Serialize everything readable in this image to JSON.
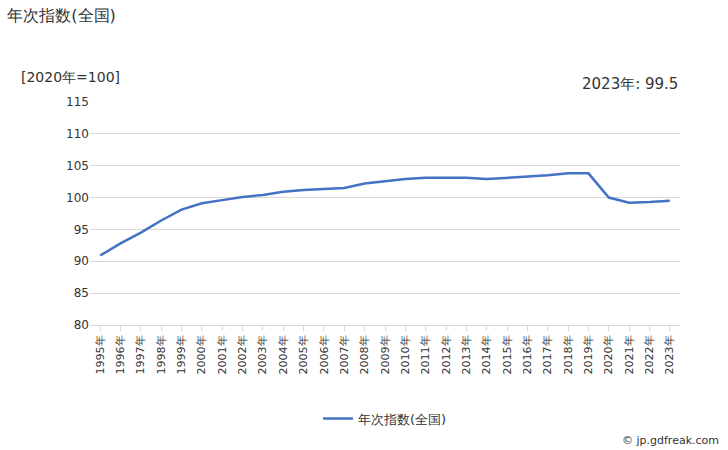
{
  "chart_data": {
    "type": "line",
    "title": "年次指数(全国)",
    "y_label": "[2020年=100]",
    "annotation": "2023年: 99.5",
    "source": "© jp.gdfreak.com",
    "categories": [
      "1995年",
      "1996年",
      "1997年",
      "1998年",
      "1999年",
      "2000年",
      "2001年",
      "2002年",
      "2003年",
      "2004年",
      "2005年",
      "2006年",
      "2007年",
      "2008年",
      "2009年",
      "2010年",
      "2011年",
      "2012年",
      "2013年",
      "2014年",
      "2015年",
      "2016年",
      "2017年",
      "2018年",
      "2019年",
      "2020年",
      "2021年",
      "2022年",
      "2023年"
    ],
    "series": [
      {
        "name": "年次指数(全国)",
        "color": "#4472c4",
        "values": [
          90.9,
          92.8,
          94.5,
          96.4,
          98.1,
          99.1,
          99.6,
          100.1,
          100.4,
          100.9,
          101.2,
          101.3,
          101.5,
          102.2,
          102.6,
          102.9,
          103.1,
          103.1,
          103.1,
          102.9,
          103.1,
          103.2,
          103.5,
          103.8,
          103.8,
          100.0,
          99.2,
          99.3,
          99.5
        ]
      }
    ],
    "ylim": [
      80,
      115
    ],
    "yticks": [
      80,
      85,
      90,
      95,
      100,
      105,
      110,
      115
    ],
    "grid": true,
    "legend": "bottom",
    "line_style": "solid",
    "marker": "none"
  }
}
